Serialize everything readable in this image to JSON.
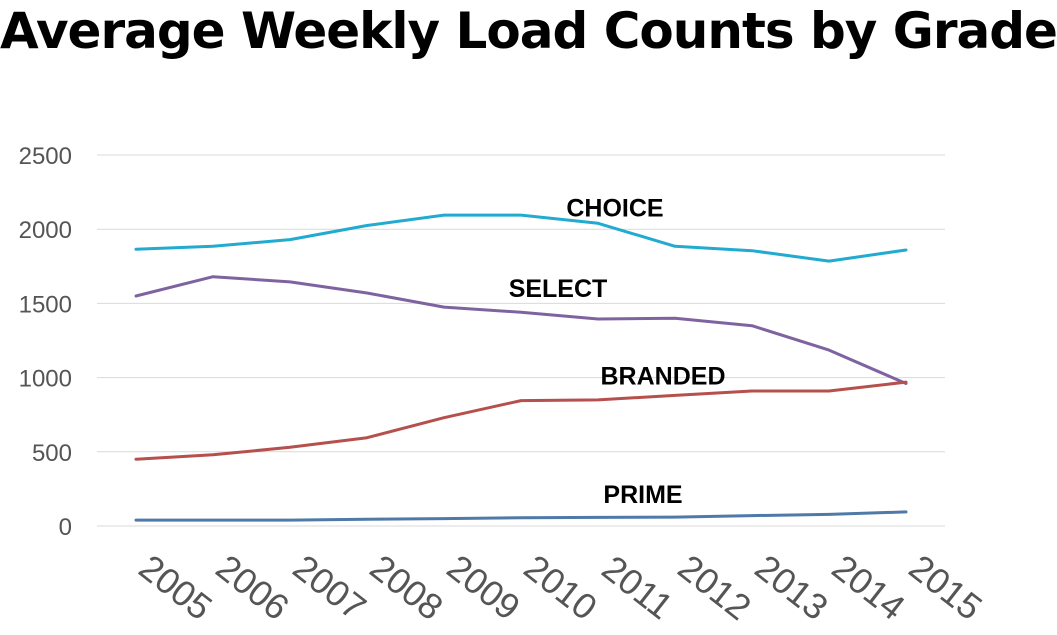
{
  "chart_data": {
    "type": "line",
    "title": "Average Weekly Load Counts by Grade",
    "xlabel": "",
    "ylabel": "",
    "x": [
      "2005",
      "2006",
      "2007",
      "2008",
      "2009",
      "2010",
      "2011",
      "2012",
      "2013",
      "2014",
      "2015"
    ],
    "ylim": [
      0,
      2500
    ],
    "yticks": [
      "0",
      "500",
      "1000",
      "1500",
      "2000",
      "2500"
    ],
    "grid": true,
    "legend": "none (direct labels on lines)",
    "series": [
      {
        "name": "CHOICE",
        "color": "#22aad0",
        "values": [
          1865,
          1885,
          1930,
          2025,
          2095,
          2095,
          2040,
          1885,
          1855,
          1785,
          1860
        ]
      },
      {
        "name": "SELECT",
        "color": "#7f63a0",
        "values": [
          1550,
          1680,
          1645,
          1570,
          1475,
          1440,
          1395,
          1400,
          1350,
          1185,
          960
        ]
      },
      {
        "name": "BRANDED",
        "color": "#b5504d",
        "values": [
          450,
          480,
          530,
          595,
          730,
          845,
          850,
          880,
          910,
          910,
          970
        ]
      },
      {
        "name": "PRIME",
        "color": "#4f7aa8",
        "values": [
          40,
          40,
          40,
          45,
          50,
          55,
          58,
          60,
          70,
          78,
          95
        ]
      }
    ]
  }
}
